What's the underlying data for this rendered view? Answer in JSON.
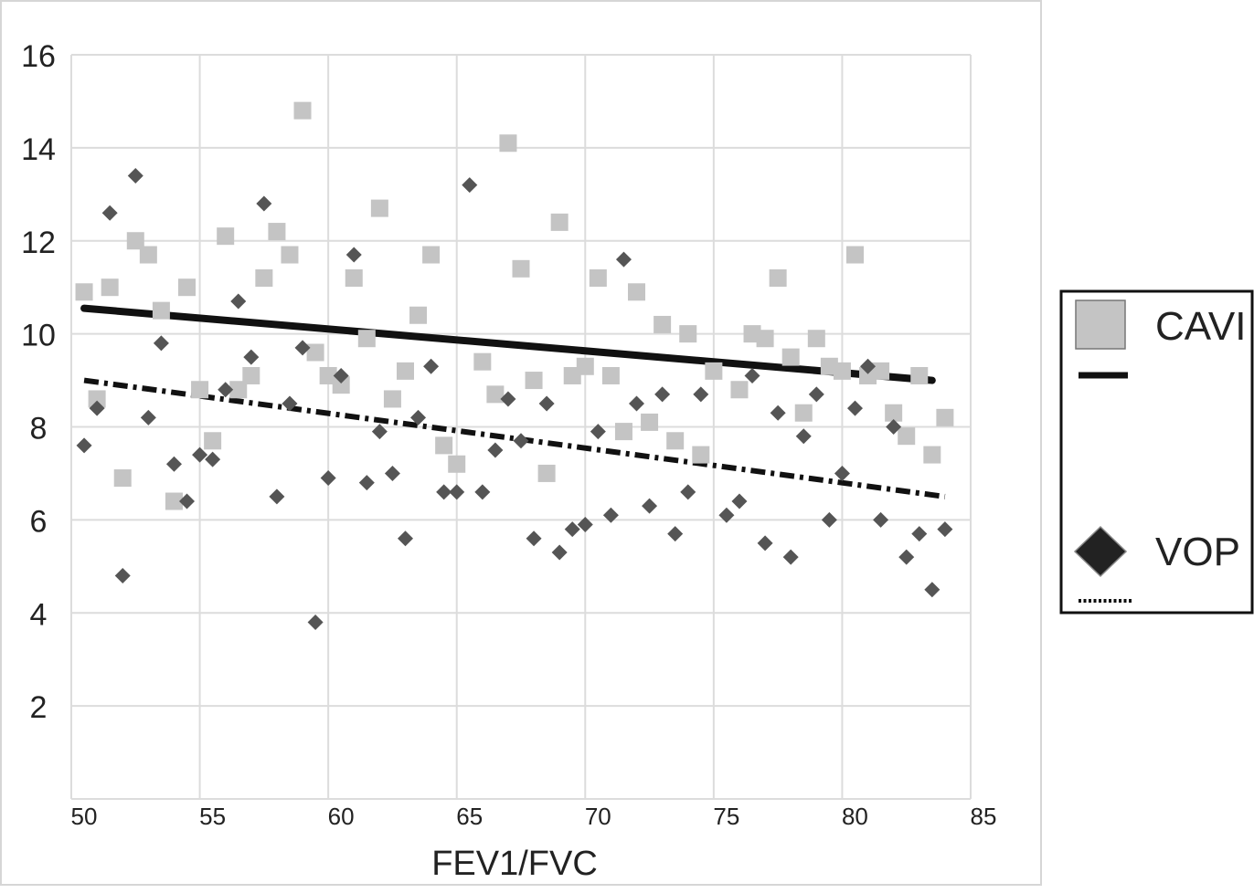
{
  "chart_data": {
    "type": "scatter",
    "title": "",
    "xlabel": "FEV1/FVC",
    "ylabel": "",
    "xlim": [
      50,
      85
    ],
    "ylim": [
      0,
      16
    ],
    "x_ticks": [
      50,
      55,
      60,
      65,
      70,
      75,
      80,
      85
    ],
    "y_ticks": [
      2,
      4,
      6,
      8,
      10,
      12,
      14,
      16
    ],
    "grid": true,
    "legend_position": "right",
    "series": [
      {
        "name": "CAVI",
        "marker": "square",
        "color": "#c4c4c4",
        "points": [
          [
            50.5,
            10.9
          ],
          [
            51,
            8.6
          ],
          [
            51.5,
            11.0
          ],
          [
            52,
            6.9
          ],
          [
            52.5,
            12.0
          ],
          [
            53,
            11.7
          ],
          [
            53.5,
            10.5
          ],
          [
            54,
            6.4
          ],
          [
            54.5,
            11.0
          ],
          [
            55,
            8.8
          ],
          [
            55.5,
            7.7
          ],
          [
            56,
            12.1
          ],
          [
            56.5,
            8.8
          ],
          [
            57,
            9.1
          ],
          [
            57.5,
            11.2
          ],
          [
            58,
            12.2
          ],
          [
            58.5,
            11.7
          ],
          [
            59,
            14.8
          ],
          [
            59.5,
            9.6
          ],
          [
            60,
            9.1
          ],
          [
            60.5,
            8.9
          ],
          [
            61,
            11.2
          ],
          [
            61.5,
            9.9
          ],
          [
            62,
            12.7
          ],
          [
            62.5,
            8.6
          ],
          [
            63,
            9.2
          ],
          [
            63.5,
            10.4
          ],
          [
            64,
            11.7
          ],
          [
            64.5,
            7.6
          ],
          [
            65,
            7.2
          ],
          [
            66,
            9.4
          ],
          [
            66.5,
            8.7
          ],
          [
            67,
            14.1
          ],
          [
            67.5,
            11.4
          ],
          [
            68,
            9.0
          ],
          [
            68.5,
            7.0
          ],
          [
            69,
            12.4
          ],
          [
            69.5,
            9.1
          ],
          [
            70,
            9.3
          ],
          [
            70.5,
            11.2
          ],
          [
            71,
            9.1
          ],
          [
            71.5,
            7.9
          ],
          [
            72,
            10.9
          ],
          [
            72.5,
            8.1
          ],
          [
            73,
            10.2
          ],
          [
            73.5,
            7.7
          ],
          [
            74,
            10.0
          ],
          [
            74.5,
            7.4
          ],
          [
            75,
            9.2
          ],
          [
            76,
            8.8
          ],
          [
            76.5,
            10.0
          ],
          [
            77,
            9.9
          ],
          [
            77.5,
            11.2
          ],
          [
            78,
            9.5
          ],
          [
            78.5,
            8.3
          ],
          [
            79,
            9.9
          ],
          [
            79.5,
            9.3
          ],
          [
            80,
            9.2
          ],
          [
            80.5,
            11.7
          ],
          [
            81,
            9.1
          ],
          [
            81.5,
            9.2
          ],
          [
            82,
            8.3
          ],
          [
            82.5,
            7.8
          ],
          [
            83,
            9.1
          ],
          [
            83.5,
            7.4
          ],
          [
            84,
            8.2
          ]
        ],
        "trendline": {
          "style": "solid",
          "from": [
            50.5,
            10.55
          ],
          "to": [
            83.5,
            9.0
          ]
        }
      },
      {
        "name": "VOP",
        "marker": "diamond",
        "color": "#555555",
        "points": [
          [
            50.5,
            7.6
          ],
          [
            51,
            8.4
          ],
          [
            51.5,
            12.6
          ],
          [
            52,
            4.8
          ],
          [
            52.5,
            13.4
          ],
          [
            53,
            8.2
          ],
          [
            53.5,
            9.8
          ],
          [
            54,
            7.2
          ],
          [
            54.5,
            6.4
          ],
          [
            55,
            7.4
          ],
          [
            55.5,
            7.3
          ],
          [
            56,
            8.8
          ],
          [
            56.5,
            10.7
          ],
          [
            57,
            9.5
          ],
          [
            57.5,
            12.8
          ],
          [
            58,
            6.5
          ],
          [
            58.5,
            8.5
          ],
          [
            59,
            9.7
          ],
          [
            59.5,
            3.8
          ],
          [
            60,
            6.9
          ],
          [
            60.5,
            9.1
          ],
          [
            61,
            11.7
          ],
          [
            61.5,
            6.8
          ],
          [
            62,
            7.9
          ],
          [
            62.5,
            7.0
          ],
          [
            63,
            5.6
          ],
          [
            63.5,
            8.2
          ],
          [
            64,
            9.3
          ],
          [
            64.5,
            6.6
          ],
          [
            65,
            6.6
          ],
          [
            65.5,
            13.2
          ],
          [
            66,
            6.6
          ],
          [
            66.5,
            7.5
          ],
          [
            67,
            8.6
          ],
          [
            67.5,
            7.7
          ],
          [
            68,
            5.6
          ],
          [
            68.5,
            8.5
          ],
          [
            69,
            5.3
          ],
          [
            69.5,
            5.8
          ],
          [
            70,
            5.9
          ],
          [
            70.5,
            7.9
          ],
          [
            71,
            6.1
          ],
          [
            71.5,
            11.6
          ],
          [
            72,
            8.5
          ],
          [
            72.5,
            6.3
          ],
          [
            73,
            8.7
          ],
          [
            73.5,
            5.7
          ],
          [
            74,
            6.6
          ],
          [
            74.5,
            8.7
          ],
          [
            75.5,
            6.1
          ],
          [
            76,
            6.4
          ],
          [
            76.5,
            9.1
          ],
          [
            77,
            5.5
          ],
          [
            77.5,
            8.3
          ],
          [
            78,
            5.2
          ],
          [
            78.5,
            7.8
          ],
          [
            79,
            8.7
          ],
          [
            79.5,
            6.0
          ],
          [
            80,
            7.0
          ],
          [
            80.5,
            8.4
          ],
          [
            81,
            9.3
          ],
          [
            81.5,
            6.0
          ],
          [
            82,
            8.0
          ],
          [
            82.5,
            5.2
          ],
          [
            83,
            5.7
          ],
          [
            83.5,
            4.5
          ],
          [
            84,
            5.8
          ]
        ],
        "trendline": {
          "style": "dash-dot",
          "from": [
            50.5,
            9.0
          ],
          "to": [
            84,
            6.5
          ]
        }
      }
    ],
    "legend": {
      "entries": [
        {
          "label": "CAVI",
          "symbol": "square",
          "color": "#c4c4c4"
        },
        {
          "label": "",
          "symbol": "solid-line",
          "color": "#111111"
        },
        {
          "label": "VOP",
          "symbol": "diamond",
          "color": "#222222"
        },
        {
          "label": "",
          "symbol": "dotted-line",
          "color": "#111111"
        }
      ]
    }
  }
}
